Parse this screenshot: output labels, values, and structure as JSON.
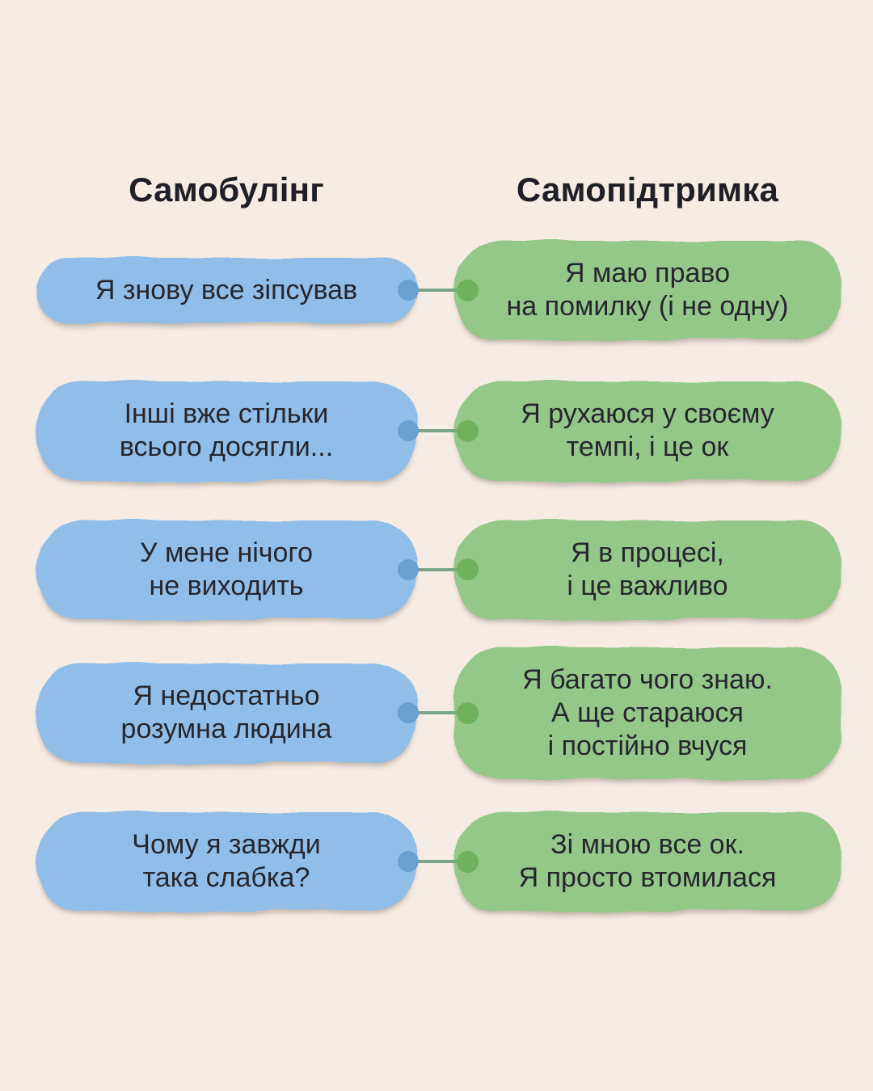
{
  "headers": {
    "left": "Самобулінг",
    "right": "Самопідтримка"
  },
  "rows": [
    {
      "left": "Я знову все зіпсував",
      "right": "Я маю право\nна помилку (і не одну)"
    },
    {
      "left": "Інші вже стільки\nвсього досягли...",
      "right": "Я рухаюся у своєму\nтемпі, і це ок"
    },
    {
      "left": "У мене нічого\nне виходить",
      "right": "Я в процесі,\nі це важливо"
    },
    {
      "left": "Я недостатньо\nрозумна людина",
      "right": "Я багато чого знаю.\nА ще стараюся\nі постійно вчуся"
    },
    {
      "left": "Чому я завжди\nтака слабка?",
      "right": "Зі мною все ок.\nЯ просто втомилася"
    }
  ],
  "colors": {
    "background": "#f6ece3",
    "blue_bubble": "#90bee8",
    "green_bubble": "#94c889",
    "blue_dot": "#6b9fd0",
    "green_dot": "#70b15e",
    "connector_line": "#78a585",
    "text": "#26262e",
    "header_text": "#1f1f27"
  }
}
